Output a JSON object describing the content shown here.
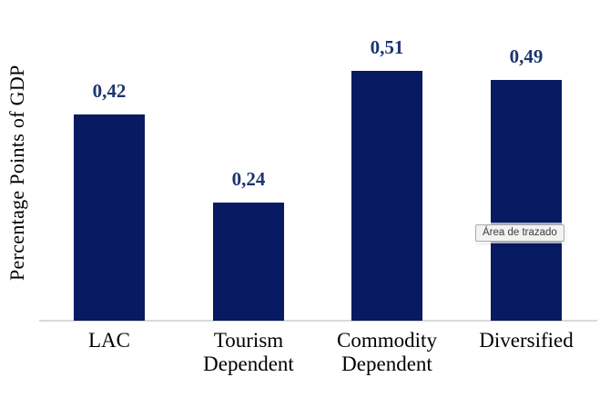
{
  "chart_data": {
    "type": "bar",
    "categories": [
      "LAC",
      "Tourism Dependent",
      "Commodity Dependent",
      "Diversified"
    ],
    "values": [
      0.42,
      0.24,
      0.51,
      0.49
    ],
    "value_labels": [
      "0,42",
      "0,24",
      "0,51",
      "0,49"
    ],
    "title": "",
    "xlabel": "",
    "ylabel": "Percentage Points of GDP",
    "ylim": [
      0,
      0.56
    ],
    "grid": false,
    "legend": false,
    "decimal_separator": ",",
    "bar_color": "#081A62",
    "value_label_color": "#1C3570",
    "axis_line_color": "#D9D9D9",
    "category_label_color": "#000000"
  },
  "tooltip": {
    "text": "Área de trazado"
  }
}
